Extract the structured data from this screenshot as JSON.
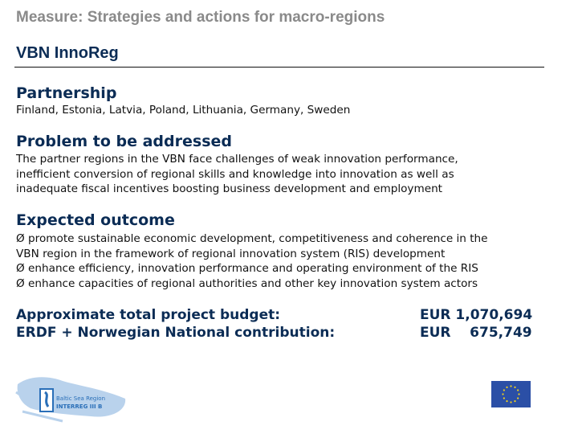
{
  "measure": "Measure: Strategies and actions for macro-regions",
  "project_title": "VBN InnoReg",
  "partnership": {
    "heading": "Partnership",
    "text": "Finland, Estonia, Latvia, Poland, Lithuania, Germany, Sweden"
  },
  "problem": {
    "heading": "Problem to be addressed",
    "lines": [
      "The partner regions in the VBN face challenges of weak innovation performance,",
      "inefficient conversion of regional skills and knowledge into innovation as well as",
      "inadequate fiscal incentives boosting business development and employment"
    ]
  },
  "outcome": {
    "heading": "Expected outcome",
    "lines": [
      "Ø promote sustainable economic development, competitiveness and coherence in the",
      "VBN region in the framework of regional innovation system (RIS) development",
      "Ø enhance efficiency, innovation performance and operating environment of the RIS",
      "Ø enhance capacities of regional authorities and other key innovation system actors"
    ]
  },
  "budget": {
    "total_label": "Approximate total project budget:",
    "total_value": "EUR 1,070,694",
    "erdf_label": "ERDF + Norwegian National contribution:",
    "erdf_value": "EUR    675,749"
  },
  "logos": {
    "interreg": "Baltic Sea Region INTERREG III B",
    "eu_flag": "eu-flag"
  }
}
